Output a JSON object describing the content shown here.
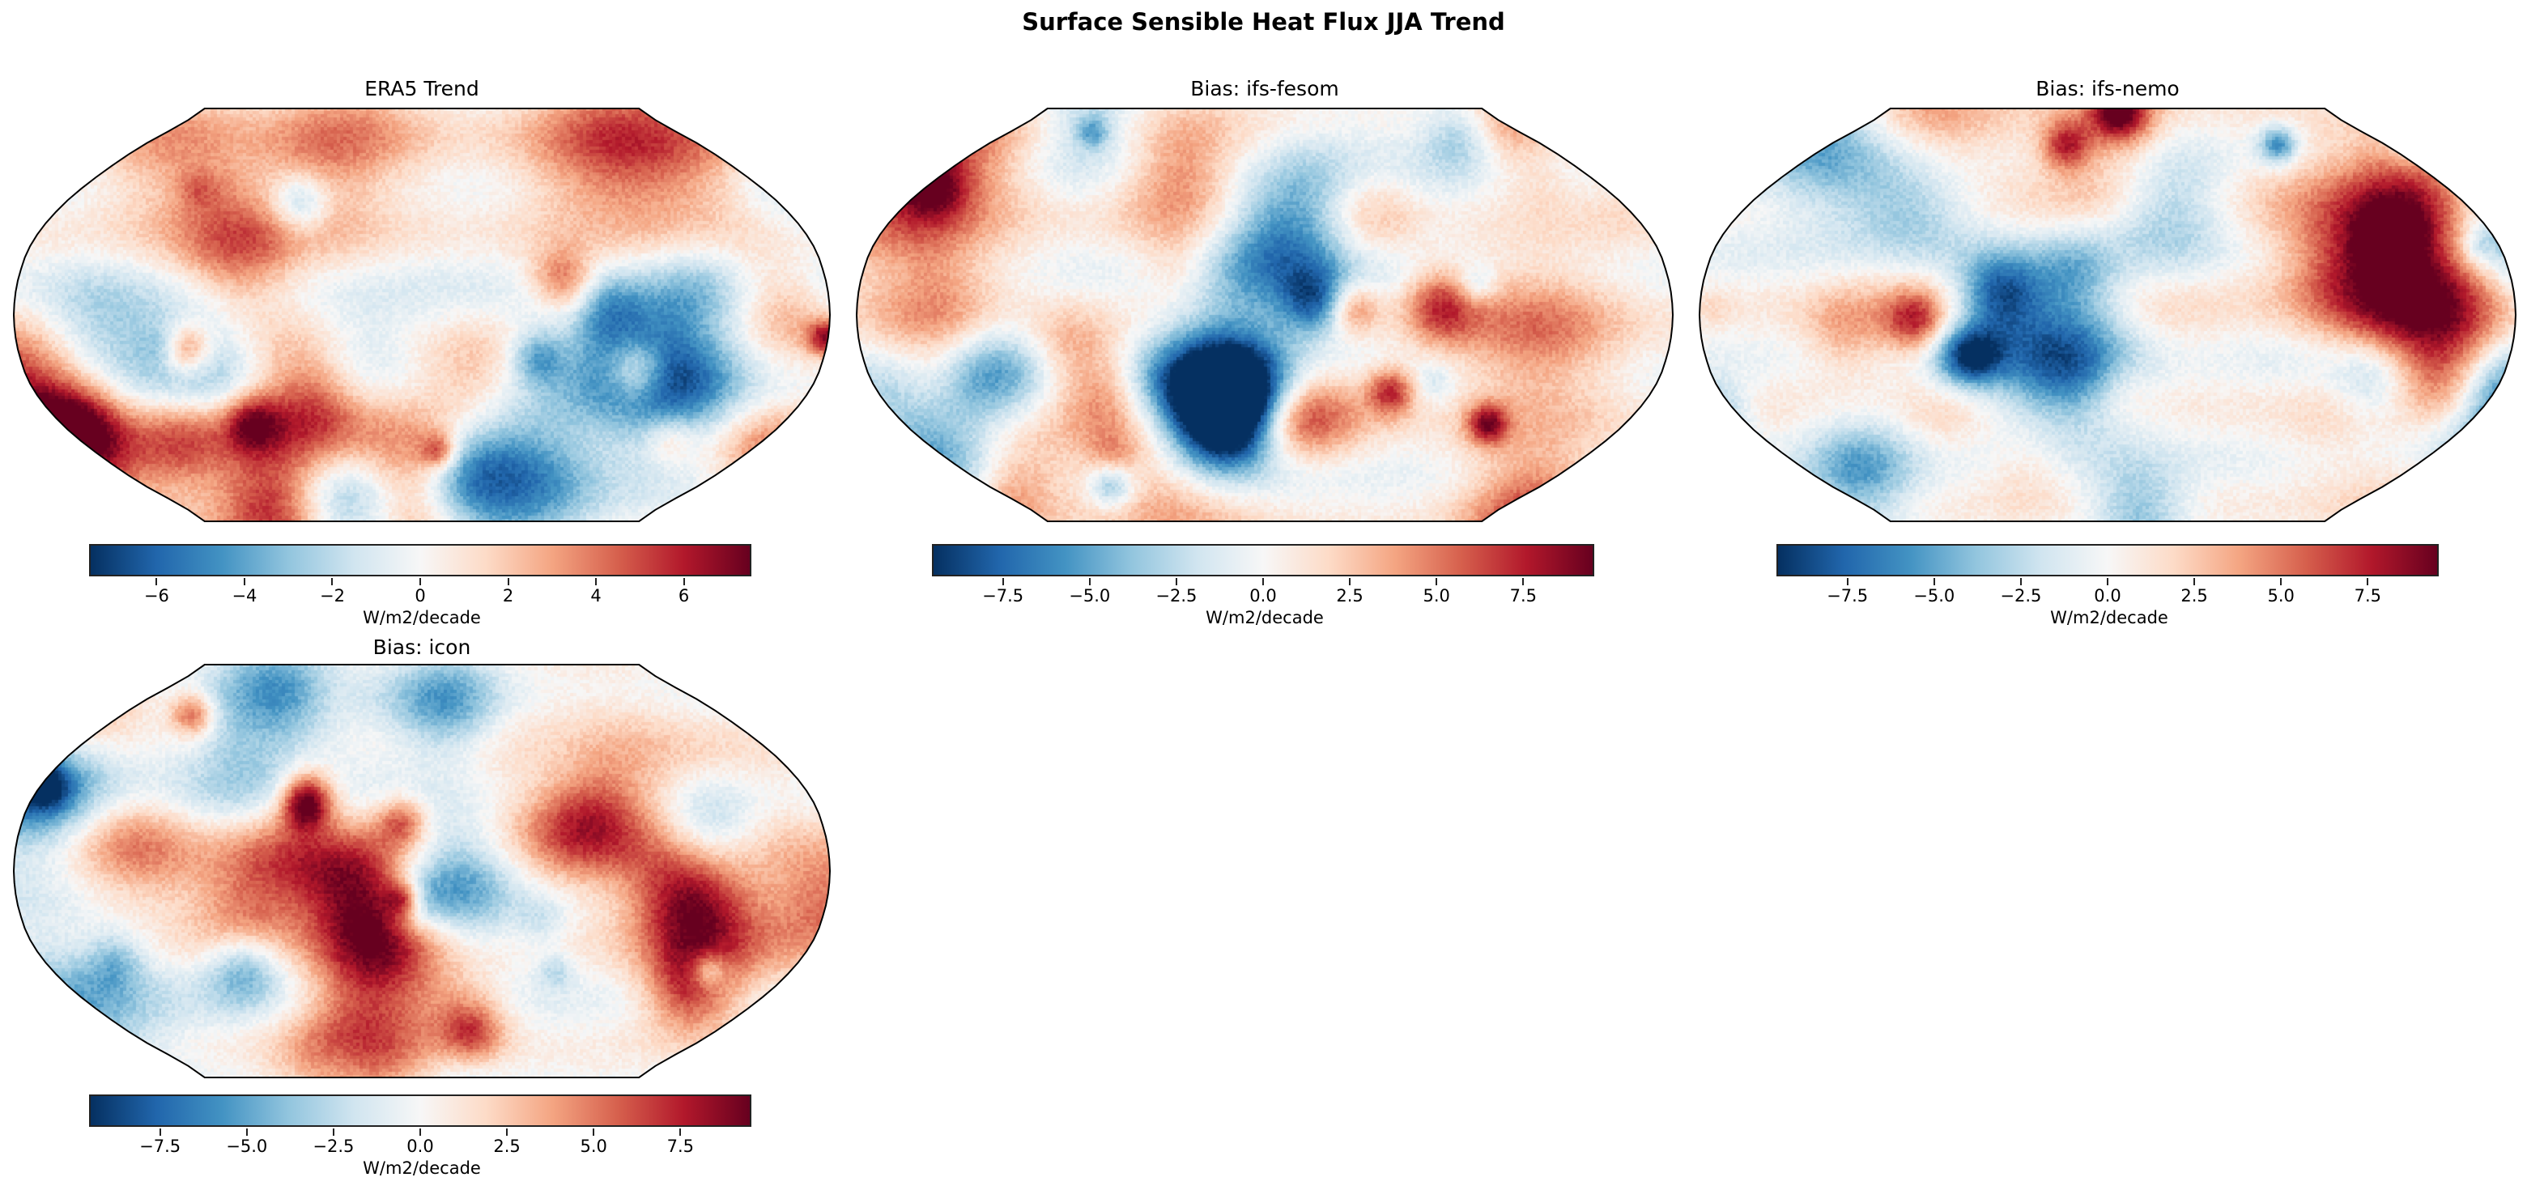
{
  "title": "Surface Sensible Heat Flux JJA Trend",
  "colormap": [
    "#053061",
    "#2166ac",
    "#4393c3",
    "#92c5de",
    "#d1e5f0",
    "#f7f7f7",
    "#fddbc7",
    "#f4a582",
    "#d6604d",
    "#b2182b",
    "#67001f"
  ],
  "projection": "Robinson",
  "panels": [
    {
      "title": "ERA5 Trend",
      "colorbar": {
        "label": "W/m2/decade",
        "range": [
          -7.5,
          7.5
        ],
        "ticks": [
          "−6",
          "−4",
          "−2",
          "0",
          "2",
          "4",
          "6"
        ],
        "tick_values": [
          -6,
          -4,
          -2,
          0,
          2,
          4,
          6
        ]
      }
    },
    {
      "title": "Bias: ifs-fesom",
      "colorbar": {
        "label": "W/m2/decade",
        "range": [
          -9.5,
          9.5
        ],
        "ticks": [
          "−7.5",
          "−5.0",
          "−2.5",
          "0.0",
          "2.5",
          "5.0",
          "7.5"
        ],
        "tick_values": [
          -7.5,
          -5,
          -2.5,
          0,
          2.5,
          5,
          7.5
        ]
      }
    },
    {
      "title": "Bias: ifs-nemo",
      "colorbar": {
        "label": "W/m2/decade",
        "range": [
          -9.5,
          9.5
        ],
        "ticks": [
          "−7.5",
          "−5.0",
          "−2.5",
          "0.0",
          "2.5",
          "5.0",
          "7.5"
        ],
        "tick_values": [
          -7.5,
          -5,
          -2.5,
          0,
          2.5,
          5,
          7.5
        ]
      }
    },
    {
      "title": "Bias: icon",
      "colorbar": {
        "label": "W/m2/decade",
        "range": [
          -9.5,
          9.5
        ],
        "ticks": [
          "−7.5",
          "−5.0",
          "−2.5",
          "0.0",
          "2.5",
          "5.0",
          "7.5"
        ],
        "tick_values": [
          -7.5,
          -5,
          -2.5,
          0,
          2.5,
          5,
          7.5
        ]
      }
    }
  ]
}
